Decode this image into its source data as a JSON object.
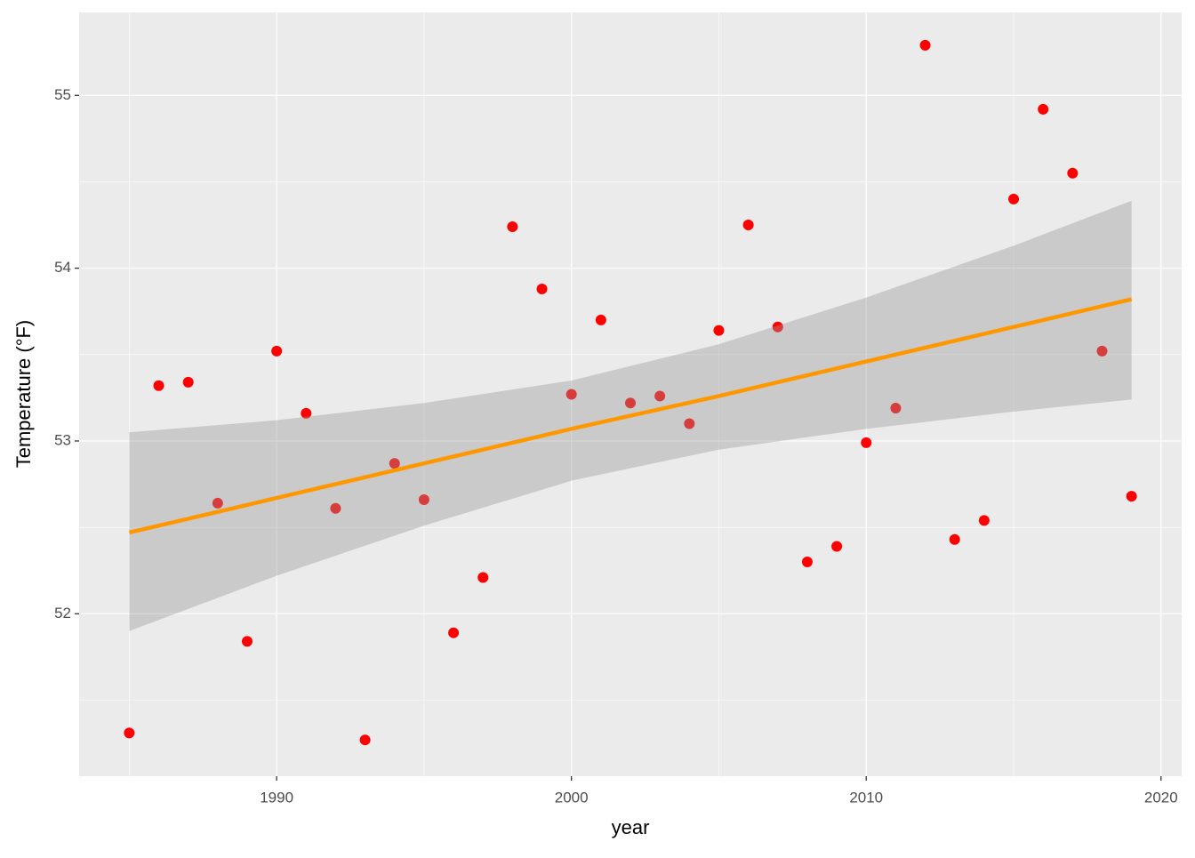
{
  "chart_data": {
    "type": "scatter",
    "x_label": "year",
    "y_label": "Temperature (°F)",
    "x": [
      1985,
      1986,
      1987,
      1988,
      1989,
      1990,
      1991,
      1992,
      1993,
      1994,
      1995,
      1996,
      1997,
      1998,
      1999,
      2000,
      2001,
      2002,
      2003,
      2004,
      2005,
      2006,
      2007,
      2008,
      2009,
      2010,
      2011,
      2012,
      2013,
      2014,
      2015,
      2016,
      2017,
      2018,
      2019
    ],
    "values": [
      51.31,
      53.32,
      53.34,
      52.64,
      51.84,
      53.52,
      53.16,
      52.61,
      51.27,
      52.87,
      52.66,
      51.89,
      52.21,
      54.24,
      53.88,
      53.27,
      53.7,
      53.22,
      53.26,
      53.1,
      53.64,
      54.25,
      53.66,
      52.3,
      52.39,
      52.99,
      53.19,
      55.29,
      52.43,
      52.54,
      54.4,
      54.92,
      54.55,
      53.52,
      52.68
    ],
    "color": "#ff0000",
    "smooth": {
      "x": [
        1985,
        1990,
        1995,
        2000,
        2005,
        2010,
        2015,
        2019
      ],
      "values": [
        52.47,
        52.67,
        52.87,
        53.07,
        53.26,
        53.46,
        53.66,
        53.82
      ],
      "lower": [
        51.9,
        52.22,
        52.51,
        52.77,
        52.95,
        53.07,
        53.17,
        53.24
      ],
      "upper": [
        53.05,
        53.12,
        53.22,
        53.35,
        53.56,
        53.83,
        54.13,
        54.39
      ],
      "color": "#ff9800",
      "band_color": "#999999"
    },
    "xlim": [
      1983.3,
      2020.7
    ],
    "xticks": [
      1990,
      2000,
      2010,
      2020
    ],
    "ylim": [
      51.06,
      55.48
    ],
    "yticks": [
      52,
      53,
      54,
      55
    ],
    "grid": true
  }
}
